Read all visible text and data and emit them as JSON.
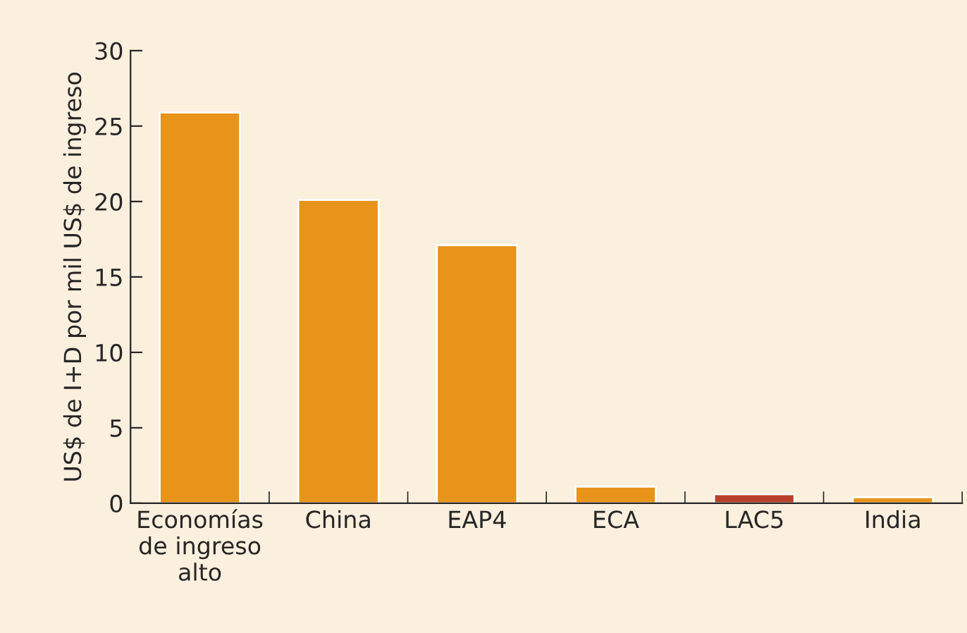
{
  "chart_data": {
    "type": "bar",
    "ylabel": "US$ de I+D por mil US$ de ingreso",
    "categories": [
      "Economías\nde ingreso\nalto",
      "China",
      "EAP4",
      "ECA",
      "LAC5",
      "India"
    ],
    "values": [
      25.9,
      20.1,
      17.1,
      1.1,
      0.6,
      0.4
    ],
    "colors": [
      "#e8931a",
      "#e8931a",
      "#e8931a",
      "#e8931a",
      "#b8402a",
      "#e8931a"
    ],
    "ylim": [
      0,
      30
    ],
    "yticks": [
      0,
      5,
      10,
      15,
      20,
      25,
      30
    ],
    "grid": false,
    "legend": false
  }
}
